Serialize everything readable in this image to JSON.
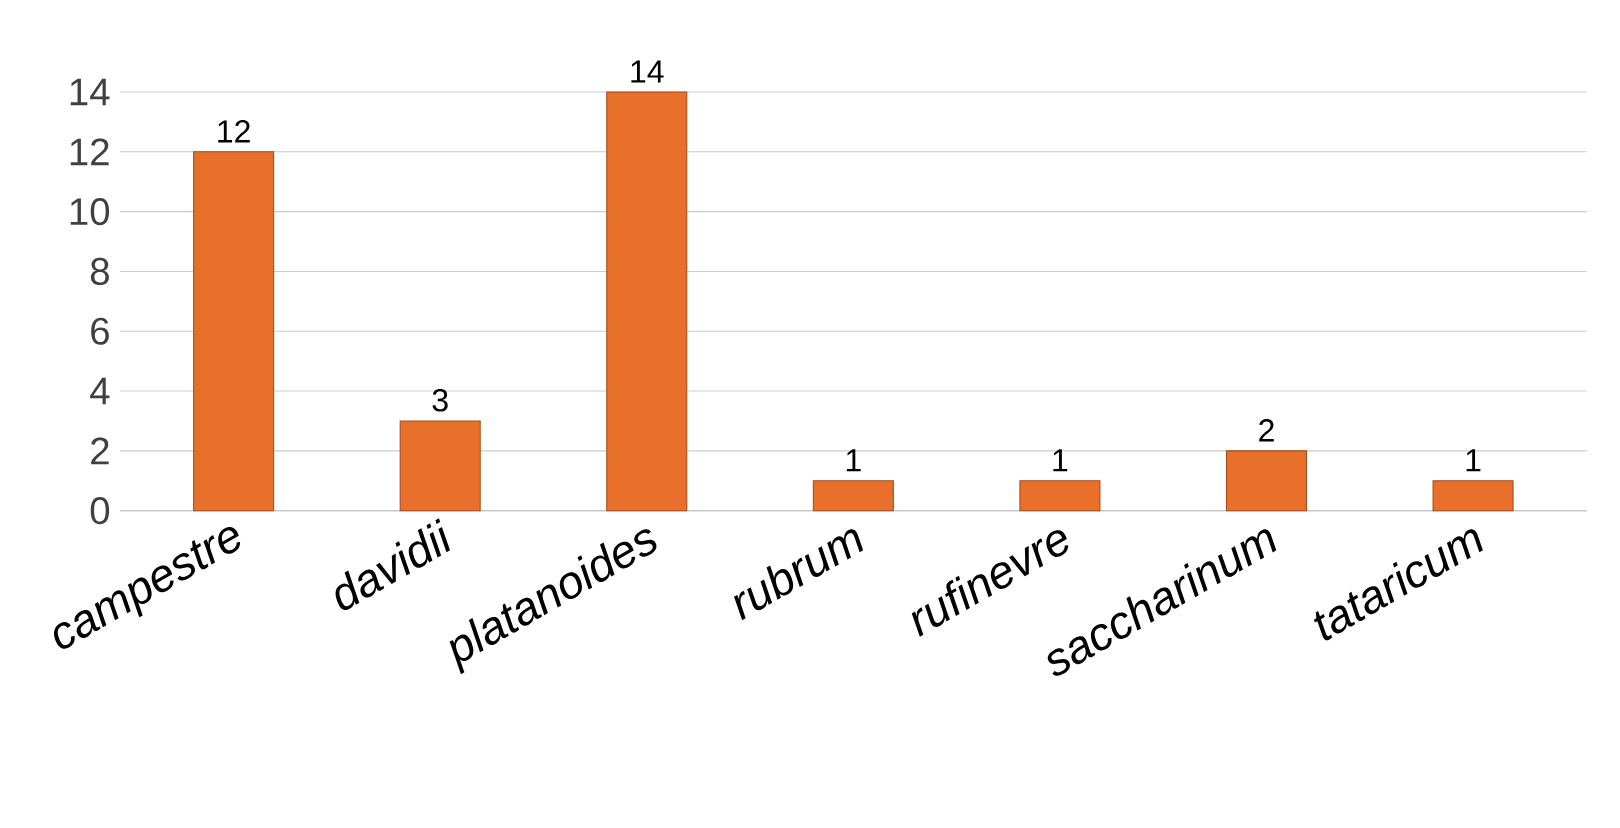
{
  "chart_data": {
    "type": "bar",
    "categories": [
      "campestre",
      "davidii",
      "platanoides",
      "rubrum",
      "rufinevre",
      "saccharinum",
      "tataricum"
    ],
    "values": [
      12,
      3,
      14,
      1,
      1,
      2,
      1
    ],
    "color": "#e8702a",
    "ylim": [
      0,
      14
    ],
    "yticks": [
      0,
      2,
      4,
      6,
      8,
      10,
      12,
      14
    ],
    "grid": "y",
    "data_labels": true
  }
}
